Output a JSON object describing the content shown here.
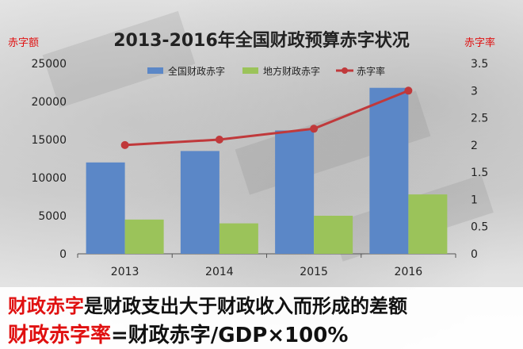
{
  "chart_data": {
    "type": "bar+line",
    "title": "2013-2016年全国财政预算赤字状况",
    "categories": [
      "2013",
      "2014",
      "2015",
      "2016"
    ],
    "series": [
      {
        "name": "全国财政赤字",
        "type": "bar",
        "axis": "left",
        "color": "#5b87c7",
        "values": [
          12000,
          13500,
          16200,
          21800
        ]
      },
      {
        "name": "地方财政赤字",
        "type": "bar",
        "axis": "left",
        "color": "#9bc35a",
        "values": [
          4500,
          4000,
          5000,
          7800
        ]
      },
      {
        "name": "赤字率",
        "type": "line",
        "axis": "right",
        "color": "#c0393b",
        "values": [
          2.0,
          2.1,
          2.3,
          3.0
        ]
      }
    ],
    "ylabel": "赤字额",
    "y2label": "赤字率",
    "ylim": [
      0,
      25000
    ],
    "y2lim": [
      0,
      3.5
    ],
    "yticks": [
      "0",
      "5000",
      "10000",
      "15000",
      "20000",
      "25000"
    ],
    "y2ticks": [
      "0",
      "0.5",
      "1",
      "1.5",
      "2",
      "2.5",
      "3",
      "3.5"
    ],
    "legend_position": "top-center",
    "grid": false
  },
  "footer": {
    "line1_highlight": "财政赤字",
    "line1_rest": "是财政支出大于财政收入而形成的差额",
    "line2_highlight": "财政赤字率",
    "line2_rest": "=财政赤字/GDP×100%"
  }
}
